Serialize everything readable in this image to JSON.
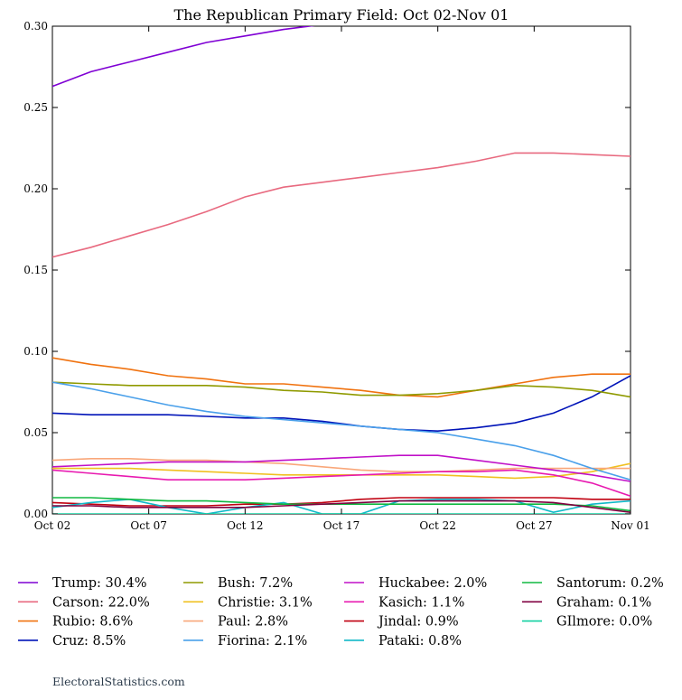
{
  "chart_data": {
    "type": "line",
    "title": "The Republican Primary Field: Oct 02-Nov 01",
    "x": [
      0,
      2,
      4,
      6,
      8,
      10,
      12,
      14,
      16,
      18,
      20,
      22,
      24,
      26,
      28,
      30
    ],
    "xlim": [
      0,
      30
    ],
    "xticks": [
      {
        "value": 0,
        "label": "Oct 02"
      },
      {
        "value": 5,
        "label": "Oct 07"
      },
      {
        "value": 10,
        "label": "Oct 12"
      },
      {
        "value": 15,
        "label": "Oct 17"
      },
      {
        "value": 20,
        "label": "Oct 22"
      },
      {
        "value": 25,
        "label": "Oct 27"
      },
      {
        "value": 30,
        "label": "Nov 01"
      }
    ],
    "ylim": [
      0,
      0.3
    ],
    "yticks": [
      {
        "value": 0,
        "label": "0.00"
      },
      {
        "value": 0.05,
        "label": "0.05"
      },
      {
        "value": 0.1,
        "label": "0.10"
      },
      {
        "value": 0.15,
        "label": "0.15"
      },
      {
        "value": 0.2,
        "label": "0.20"
      },
      {
        "value": 0.25,
        "label": "0.25"
      },
      {
        "value": 0.3,
        "label": "0.30"
      }
    ],
    "series": [
      {
        "name": "Trump: 30.4%",
        "color": "#7f00d4",
        "values": [
          0.263,
          0.272,
          0.278,
          0.284,
          0.29,
          0.294,
          0.298,
          0.301,
          0.303,
          0.304,
          0.305,
          0.305,
          0.305,
          0.304,
          0.304,
          0.304
        ]
      },
      {
        "name": "Carson: 22.0%",
        "color": "#e8697f",
        "values": [
          0.158,
          0.164,
          0.171,
          0.178,
          0.186,
          0.195,
          0.201,
          0.204,
          0.207,
          0.21,
          0.213,
          0.217,
          0.222,
          0.222,
          0.221,
          0.22
        ]
      },
      {
        "name": "Rubio: 8.6%",
        "color": "#f0720f",
        "values": [
          0.096,
          0.092,
          0.089,
          0.085,
          0.083,
          0.08,
          0.08,
          0.078,
          0.076,
          0.073,
          0.072,
          0.076,
          0.08,
          0.084,
          0.086,
          0.086
        ]
      },
      {
        "name": "Cruz: 8.5%",
        "color": "#0013b8",
        "values": [
          0.062,
          0.061,
          0.061,
          0.061,
          0.06,
          0.059,
          0.059,
          0.057,
          0.054,
          0.052,
          0.051,
          0.053,
          0.056,
          0.062,
          0.072,
          0.085
        ]
      },
      {
        "name": "Bush: 7.2%",
        "color": "#8f9a00",
        "values": [
          0.081,
          0.08,
          0.079,
          0.079,
          0.079,
          0.078,
          0.076,
          0.075,
          0.073,
          0.073,
          0.074,
          0.076,
          0.079,
          0.078,
          0.076,
          0.072
        ]
      },
      {
        "name": "Christie: 3.1%",
        "color": "#f0c020",
        "values": [
          0.028,
          0.028,
          0.028,
          0.027,
          0.026,
          0.025,
          0.024,
          0.024,
          0.024,
          0.024,
          0.024,
          0.023,
          0.022,
          0.023,
          0.026,
          0.031
        ]
      },
      {
        "name": "Paul: 2.8%",
        "color": "#f9a77a",
        "values": [
          0.033,
          0.034,
          0.034,
          0.033,
          0.033,
          0.032,
          0.031,
          0.029,
          0.027,
          0.026,
          0.026,
          0.027,
          0.028,
          0.028,
          0.028,
          0.028
        ]
      },
      {
        "name": "Fiorina: 2.1%",
        "color": "#4aa0ea",
        "values": [
          0.081,
          0.077,
          0.072,
          0.067,
          0.063,
          0.06,
          0.058,
          0.056,
          0.054,
          0.052,
          0.05,
          0.046,
          0.042,
          0.036,
          0.028,
          0.021
        ]
      },
      {
        "name": "Huckabee: 2.0%",
        "color": "#c010c8",
        "values": [
          0.029,
          0.03,
          0.031,
          0.032,
          0.032,
          0.032,
          0.033,
          0.034,
          0.035,
          0.036,
          0.036,
          0.033,
          0.03,
          0.027,
          0.024,
          0.02
        ]
      },
      {
        "name": "Kasich: 1.1%",
        "color": "#e81ab0",
        "values": [
          0.027,
          0.025,
          0.023,
          0.021,
          0.021,
          0.021,
          0.022,
          0.023,
          0.024,
          0.025,
          0.026,
          0.026,
          0.027,
          0.024,
          0.019,
          0.011
        ]
      },
      {
        "name": "Jindal: 0.9%",
        "color": "#c00010",
        "values": [
          0.007,
          0.006,
          0.005,
          0.005,
          0.005,
          0.006,
          0.006,
          0.007,
          0.009,
          0.01,
          0.01,
          0.01,
          0.01,
          0.01,
          0.009,
          0.009
        ]
      },
      {
        "name": "Pataki: 0.8%",
        "color": "#10b8c8",
        "values": [
          0.004,
          0.007,
          0.009,
          0.004,
          0,
          0.004,
          0.007,
          0,
          0,
          0.008,
          0.009,
          0.009,
          0.008,
          0.001,
          0.006,
          0.008
        ]
      },
      {
        "name": "Santorum: 0.2%",
        "color": "#10b840",
        "values": [
          0.01,
          0.01,
          0.009,
          0.008,
          0.008,
          0.007,
          0.006,
          0.006,
          0.006,
          0.006,
          0.006,
          0.006,
          0.006,
          0.006,
          0.005,
          0.002
        ]
      },
      {
        "name": "Graham: 0.1%",
        "color": "#800040",
        "values": [
          0.005,
          0.005,
          0.004,
          0.004,
          0.004,
          0.004,
          0.005,
          0.006,
          0.007,
          0.008,
          0.008,
          0.008,
          0.008,
          0.007,
          0.004,
          0.001
        ]
      },
      {
        "name": "GIlmore: 0.0%",
        "color": "#10d0a0",
        "values": [
          0,
          0,
          0,
          0,
          0,
          0,
          0,
          0,
          0,
          0,
          0,
          0,
          0,
          0,
          0,
          0
        ]
      }
    ],
    "footer": "ElectoralStatistics.com"
  }
}
